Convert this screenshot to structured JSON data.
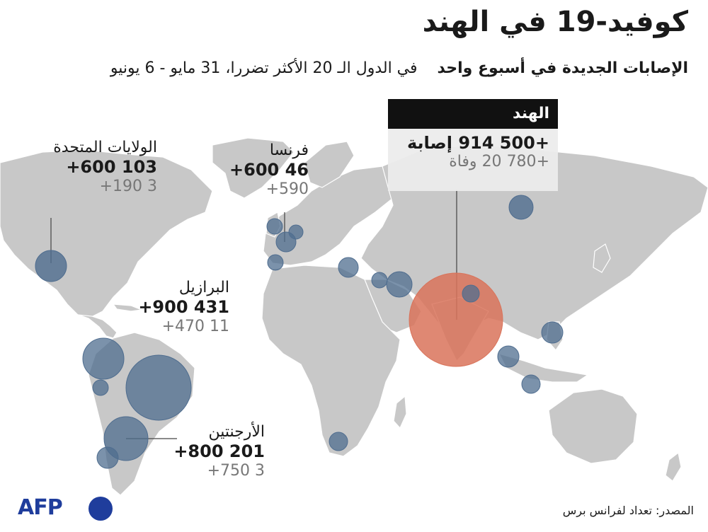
{
  "title": "كوفيد-19 في الهند",
  "subtitle": {
    "bold": "الإصابات الجديدة في أسبوع واحد",
    "rest": "في الدول الـ 20 الأكثر تضررا، 31 مايو - 6 يونيو"
  },
  "countries": {
    "usa": {
      "name": "الولايات المتحدة",
      "cases": "103 600+",
      "deaths": "3 190+"
    },
    "france": {
      "name": "فرنسا",
      "cases": "46 600+",
      "deaths": "590+"
    },
    "brazil": {
      "name": "البرازيل",
      "cases": "431 900+",
      "deaths": "11 470+"
    },
    "argentina": {
      "name": "الأرجنتين",
      "cases": "201 800+",
      "deaths": "3 750+"
    },
    "india": {
      "name": "الهند",
      "cases": "+500 914 إصابة",
      "deaths": "+780 20 وفاة"
    }
  },
  "source": "المصدر: تعداد لفرانس برس",
  "logo": "AFP",
  "colors": {
    "land": "#c8c8c8",
    "ocean": "#ffffff",
    "bubble": "#4f6d8f",
    "india_bubble": "#d9735a",
    "afp_blue": "#1f3d9c"
  }
}
